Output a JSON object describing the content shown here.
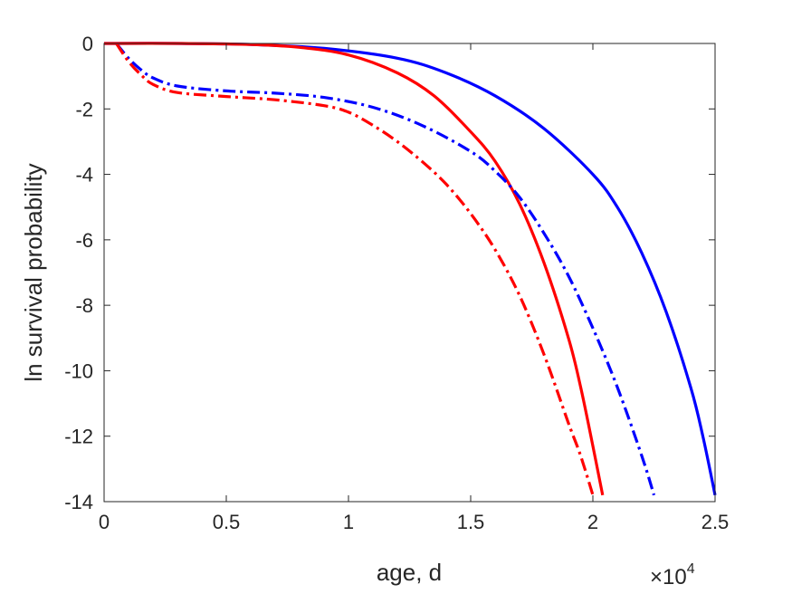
{
  "chart_data": {
    "type": "line",
    "xlabel": "age, d",
    "ylabel": "ln survival probability",
    "x_exponent_base": "×10",
    "x_exponent_power": "4",
    "xlim": [
      0,
      25000
    ],
    "ylim": [
      -14,
      0
    ],
    "xticks": [
      0,
      5000,
      10000,
      15000,
      20000,
      25000
    ],
    "xtick_labels": [
      "0",
      "0.5",
      "1",
      "1.5",
      "2",
      "2.5"
    ],
    "yticks": [
      0,
      -2,
      -4,
      -6,
      -8,
      -10,
      -12,
      -14
    ],
    "ytick_labels": [
      "0",
      "-2",
      "-4",
      "-6",
      "-8",
      "-10",
      "-12",
      "-14"
    ],
    "grid": false,
    "series": [
      {
        "color": "#0000ff",
        "style": "solid",
        "points": [
          [
            0,
            0
          ],
          [
            3000,
            0
          ],
          [
            6000,
            -0.03
          ],
          [
            9000,
            -0.15
          ],
          [
            12000,
            -0.45
          ],
          [
            14000,
            -0.9
          ],
          [
            16000,
            -1.6
          ],
          [
            18000,
            -2.6
          ],
          [
            20000,
            -4.0
          ],
          [
            21000,
            -5.0
          ],
          [
            22000,
            -6.4
          ],
          [
            23000,
            -8.2
          ],
          [
            24000,
            -10.5
          ],
          [
            24500,
            -12.0
          ],
          [
            25000,
            -13.8
          ]
        ]
      },
      {
        "color": "#ff0000",
        "style": "solid",
        "points": [
          [
            0,
            0
          ],
          [
            3000,
            0
          ],
          [
            6000,
            -0.03
          ],
          [
            8000,
            -0.12
          ],
          [
            10000,
            -0.35
          ],
          [
            12000,
            -0.9
          ],
          [
            13500,
            -1.6
          ],
          [
            15000,
            -2.7
          ],
          [
            16000,
            -3.6
          ],
          [
            17000,
            -4.9
          ],
          [
            18000,
            -6.7
          ],
          [
            19000,
            -9.0
          ],
          [
            19500,
            -10.5
          ],
          [
            20000,
            -12.3
          ],
          [
            20400,
            -13.8
          ]
        ]
      },
      {
        "color": "#0000ff",
        "style": "dashdot",
        "points": [
          [
            500,
            0
          ],
          [
            1000,
            -0.45
          ],
          [
            1500,
            -0.8
          ],
          [
            2000,
            -1.05
          ],
          [
            3000,
            -1.3
          ],
          [
            5000,
            -1.45
          ],
          [
            7000,
            -1.52
          ],
          [
            9000,
            -1.65
          ],
          [
            11000,
            -1.95
          ],
          [
            13000,
            -2.5
          ],
          [
            15000,
            -3.3
          ],
          [
            16000,
            -3.9
          ],
          [
            17000,
            -4.7
          ],
          [
            18000,
            -5.8
          ],
          [
            19000,
            -7.1
          ],
          [
            20000,
            -8.7
          ],
          [
            21000,
            -10.5
          ],
          [
            22000,
            -12.6
          ],
          [
            22500,
            -13.8
          ]
        ]
      },
      {
        "color": "#ff0000",
        "style": "dashdot",
        "points": [
          [
            500,
            0
          ],
          [
            1000,
            -0.55
          ],
          [
            1500,
            -0.95
          ],
          [
            2000,
            -1.25
          ],
          [
            3000,
            -1.5
          ],
          [
            5000,
            -1.62
          ],
          [
            7000,
            -1.72
          ],
          [
            9000,
            -1.9
          ],
          [
            10000,
            -2.1
          ],
          [
            11000,
            -2.5
          ],
          [
            12000,
            -3.0
          ],
          [
            13000,
            -3.6
          ],
          [
            14000,
            -4.3
          ],
          [
            15000,
            -5.2
          ],
          [
            16000,
            -6.3
          ],
          [
            17000,
            -7.7
          ],
          [
            18000,
            -9.5
          ],
          [
            19000,
            -11.6
          ],
          [
            19500,
            -12.6
          ],
          [
            20000,
            -13.8
          ]
        ]
      }
    ]
  }
}
